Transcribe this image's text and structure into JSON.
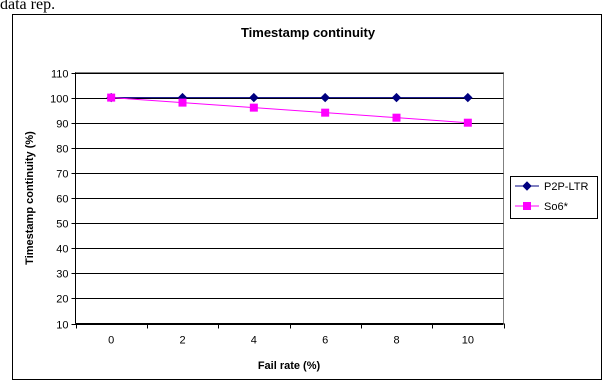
{
  "page": {
    "top_text": "data rep."
  },
  "chart_data": {
    "type": "line",
    "title": "Timestamp continuity",
    "xlabel": "Fail rate (%)",
    "ylabel": "Timestamp continuity (%)",
    "x": [
      0,
      2,
      4,
      6,
      8,
      10
    ],
    "ylim": [
      10,
      110
    ],
    "yticks": [
      10,
      20,
      30,
      40,
      50,
      60,
      70,
      80,
      90,
      100,
      110
    ],
    "grid": true,
    "legend_position": "right",
    "series": [
      {
        "name": "P2P-LTR",
        "values": [
          100,
          100,
          100,
          100,
          100,
          100
        ],
        "color": "#000080",
        "marker": "diamond"
      },
      {
        "name": "So6*",
        "values": [
          100,
          98,
          96,
          94,
          92,
          90
        ],
        "color": "#ff00ff",
        "marker": "square"
      }
    ]
  }
}
